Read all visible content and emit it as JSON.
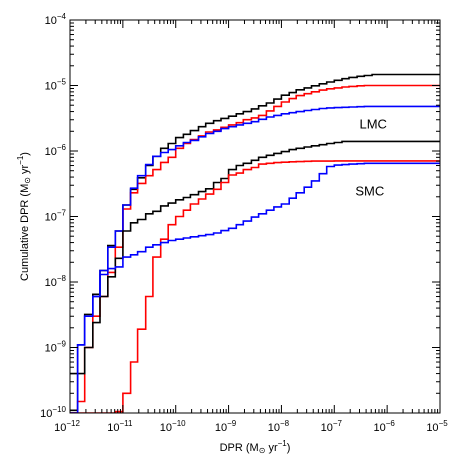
{
  "chart_data": {
    "type": "line",
    "step": true,
    "xscale": "log",
    "yscale": "log",
    "xlim": [
      1e-12,
      1e-05
    ],
    "ylim": [
      1e-10,
      0.0001
    ],
    "xlabel_base": "DPR (M",
    "xlabel_unit": " yr",
    "ylabel_base": "Cumulative DPR (M",
    "ylabel_unit": " yr",
    "unit_exponent": "−1",
    "unit_close": ")",
    "x_tick_labels": [
      "10",
      "10",
      "10",
      "10",
      "10",
      "10",
      "10",
      "10"
    ],
    "x_tick_exponents": [
      "−12",
      "−11",
      "−10",
      "−9",
      "−8",
      "−7",
      "−6",
      "−5"
    ],
    "y_tick_labels": [
      "10",
      "10",
      "10",
      "10",
      "10",
      "10",
      "10"
    ],
    "y_tick_exponents": [
      "−10",
      "−9",
      "−8",
      "−7",
      "−6",
      "−5",
      "−4"
    ],
    "annotations": [
      {
        "text": "LMC",
        "x": 3e-07,
        "y": 2.2e-06
      },
      {
        "text": "SMC",
        "x": 2.5e-07,
        "y": 2.1e-07
      }
    ],
    "series": [
      {
        "group": "LMC",
        "color": "#000000",
        "x": [
          1e-12,
          1.4e-12,
          1.9e-12,
          2.7e-12,
          3.7e-12,
          5.2e-12,
          7.2e-12,
          1e-11,
          1.4e-11,
          1.9e-11,
          2.7e-11,
          3.7e-11,
          5.2e-11,
          7.2e-11,
          1e-10,
          1.4e-10,
          1.9e-10,
          2.7e-10,
          3.7e-10,
          5.2e-10,
          7.2e-10,
          1e-09,
          1.4e-09,
          1.9e-09,
          2.7e-09,
          3.7e-09,
          5.2e-09,
          7.2e-09,
          1e-08,
          1.4e-08,
          1.9e-08,
          2.7e-08,
          3.7e-08,
          5.2e-08,
          7.2e-08,
          1e-07,
          1.4e-07,
          1.9e-07,
          2.7e-07,
          3.7e-07,
          5.2e-07,
          1e-05
        ],
        "y": [
          4e-10,
          1.1e-09,
          3.2e-09,
          6.5e-09,
          1.5e-08,
          3.6e-08,
          6e-08,
          1.5e-07,
          2.6e-07,
          3.9e-07,
          6e-07,
          8.3e-07,
          1.1e-06,
          1.3e-06,
          1.6e-06,
          1.8e-06,
          2.05e-06,
          2.35e-06,
          2.65e-06,
          2.9e-06,
          3.15e-06,
          3.4e-06,
          3.7e-06,
          4e-06,
          4.4e-06,
          4.9e-06,
          5.4e-06,
          6.2e-06,
          7.1e-06,
          7.8e-06,
          8.6e-06,
          9.2e-06,
          9.9e-06,
          1.06e-05,
          1.13e-05,
          1.2e-05,
          1.27e-05,
          1.33e-05,
          1.38e-05,
          1.42e-05,
          1.47e-05,
          1.47e-05
        ]
      },
      {
        "group": "LMC",
        "color": "#ff0000",
        "x": [
          1e-12,
          1.4e-12,
          1.9e-12,
          2.7e-12,
          3.7e-12,
          5.2e-12,
          7.2e-12,
          1e-11,
          1.4e-11,
          1.9e-11,
          2.7e-11,
          3.7e-11,
          5.2e-11,
          7.2e-11,
          1e-10,
          1.4e-10,
          1.9e-10,
          2.7e-10,
          3.7e-10,
          5.2e-10,
          7.2e-10,
          1e-09,
          1.4e-09,
          1.9e-09,
          2.7e-09,
          3.7e-09,
          5.2e-09,
          7.2e-09,
          1e-08,
          1.4e-08,
          1.9e-08,
          2.7e-08,
          3.7e-08,
          5.2e-08,
          7.2e-08,
          1e-07,
          1.4e-07,
          1.9e-07,
          2.7e-07,
          3.7e-07,
          5.2e-07,
          1e-05
        ],
        "y": [
          1e-10,
          1.5e-10,
          1e-09,
          3e-09,
          6e-09,
          1.4e-08,
          3.4e-08,
          1.3e-07,
          2.3e-07,
          3.2e-07,
          4.2e-07,
          5.2e-07,
          6.7e-07,
          8e-07,
          1.1e-06,
          1.3e-06,
          1.5e-06,
          1.7e-06,
          1.95e-06,
          2.1e-06,
          2.3e-06,
          2.5e-06,
          2.7e-06,
          3e-06,
          3.2e-06,
          3.5e-06,
          4.1e-06,
          4.8e-06,
          5.6e-06,
          6.3e-06,
          7e-06,
          7.5e-06,
          8e-06,
          8.5e-06,
          8.9e-06,
          9.2e-06,
          9.5e-06,
          9.7e-06,
          9.9e-06,
          1e-05,
          1e-05,
          1e-05
        ]
      },
      {
        "group": "LMC",
        "color": "#0000ff",
        "x": [
          1e-12,
          1.4e-12,
          1.9e-12,
          2.7e-12,
          3.7e-12,
          5.2e-12,
          7.2e-12,
          1e-11,
          1.4e-11,
          1.9e-11,
          2.7e-11,
          3.7e-11,
          5.2e-11,
          7.2e-11,
          1e-10,
          1.4e-10,
          1.9e-10,
          2.7e-10,
          3.7e-10,
          5.2e-10,
          7.2e-10,
          1e-09,
          1.4e-09,
          1.9e-09,
          2.7e-09,
          3.7e-09,
          5.2e-09,
          7.2e-09,
          1e-08,
          1.4e-08,
          1.9e-08,
          2.7e-08,
          3.7e-08,
          5.2e-08,
          7.2e-08,
          1e-07,
          1.4e-07,
          1.9e-07,
          2.7e-07,
          3.7e-07,
          5.2e-07,
          1e-05
        ],
        "y": [
          1e-10,
          1.1e-09,
          3e-09,
          6e-09,
          1.5e-08,
          3.4e-08,
          6e-08,
          1.5e-07,
          2.7e-07,
          4.2e-07,
          6.2e-07,
          8.3e-07,
          9.5e-07,
          1.05e-06,
          1.2e-06,
          1.35e-06,
          1.45e-06,
          1.65e-06,
          1.85e-06,
          2e-06,
          2.2e-06,
          2.35e-06,
          2.5e-06,
          2.65e-06,
          2.8e-06,
          3.05e-06,
          3.3e-06,
          3.5e-06,
          3.7e-06,
          3.85e-06,
          4e-06,
          4.15e-06,
          4.3e-06,
          4.45e-06,
          4.55e-06,
          4.6e-06,
          4.65e-06,
          4.7e-06,
          4.75e-06,
          4.8e-06,
          4.8e-06,
          4.8e-06
        ]
      },
      {
        "group": "SMC",
        "color": "#000000",
        "x": [
          1e-12,
          1.4e-12,
          1.9e-12,
          2.7e-12,
          3.7e-12,
          5.2e-12,
          7.2e-12,
          1e-11,
          1.4e-11,
          1.9e-11,
          2.7e-11,
          3.7e-11,
          5.2e-11,
          7.2e-11,
          1e-10,
          1.4e-10,
          1.9e-10,
          2.7e-10,
          3.7e-10,
          5.2e-10,
          7.2e-10,
          1e-09,
          1.4e-09,
          1.9e-09,
          2.7e-09,
          3.7e-09,
          5.2e-09,
          7.2e-09,
          1e-08,
          1.4e-08,
          1.9e-08,
          2.7e-08,
          3.7e-08,
          5.2e-08,
          7.2e-08,
          1e-07,
          1.4e-07,
          1.9e-07,
          2.7e-07,
          3.7e-07,
          5.2e-07,
          1e-05
        ],
        "y": [
          1.1e-10,
          4e-10,
          1e-09,
          2.4e-09,
          6e-09,
          1.2e-08,
          2.3e-08,
          6e-08,
          8e-08,
          9e-08,
          1.1e-07,
          1.2e-07,
          1.45e-07,
          1.6e-07,
          1.8e-07,
          1.95e-07,
          2.15e-07,
          2.4e-07,
          2.65e-07,
          3.3e-07,
          3.8e-07,
          5.2e-07,
          6e-07,
          6.5e-07,
          7.2e-07,
          8e-07,
          8.6e-07,
          9.2e-07,
          9.8e-07,
          1.05e-06,
          1.1e-06,
          1.15e-06,
          1.2e-06,
          1.25e-06,
          1.3e-06,
          1.35e-06,
          1.4e-06,
          1.4e-06,
          1.4e-06,
          1.4e-06,
          1.4e-06,
          1.4e-06
        ]
      },
      {
        "group": "SMC",
        "color": "#ff0000",
        "x": [
          1e-12,
          1.4e-12,
          1.9e-12,
          2.7e-12,
          3.7e-12,
          5.2e-12,
          7.2e-12,
          1e-11,
          1.4e-11,
          1.9e-11,
          2.7e-11,
          3.7e-11,
          5.2e-11,
          7.2e-11,
          1e-10,
          1.4e-10,
          1.9e-10,
          2.7e-10,
          3.7e-10,
          5.2e-10,
          7.2e-10,
          1e-09,
          1.4e-09,
          1.9e-09,
          2.7e-09,
          3.7e-09,
          5.2e-09,
          7.2e-09,
          1e-08,
          1.4e-08,
          1.9e-08,
          2.7e-08,
          3.7e-08,
          5.2e-08,
          7.2e-08,
          1e-07,
          1.4e-07,
          1.9e-07,
          2.7e-07,
          3.7e-07,
          5.2e-07,
          1e-05
        ],
        "y": [
          1e-10,
          1e-10,
          1e-10,
          1e-10,
          1e-10,
          1e-10,
          1.05e-10,
          2e-10,
          6e-10,
          1.9e-09,
          6e-09,
          2.4e-08,
          4.5e-08,
          7.5e-08,
          1e-07,
          1.25e-07,
          1.55e-07,
          1.85e-07,
          2.2e-07,
          2.6e-07,
          3.3e-07,
          4.3e-07,
          4.6e-07,
          5.2e-07,
          5.6e-07,
          6.3e-07,
          6.5e-07,
          6.65e-07,
          6.75e-07,
          6.85e-07,
          6.9e-07,
          6.95e-07,
          7e-07,
          7e-07,
          7e-07,
          7.05e-07,
          7.05e-07,
          7.05e-07,
          7.05e-07,
          7.05e-07,
          7.05e-07,
          7.05e-07
        ]
      },
      {
        "group": "SMC",
        "color": "#0000ff",
        "x": [
          1e-12,
          1.4e-12,
          1.9e-12,
          2.7e-12,
          3.7e-12,
          5.2e-12,
          7.2e-12,
          1e-11,
          1.4e-11,
          1.9e-11,
          2.7e-11,
          3.7e-11,
          5.2e-11,
          7.2e-11,
          1e-10,
          1.4e-10,
          1.9e-10,
          2.7e-10,
          3.7e-10,
          5.2e-10,
          7.2e-10,
          1e-09,
          1.4e-09,
          1.9e-09,
          2.7e-09,
          3.7e-09,
          5.2e-09,
          7.2e-09,
          1e-08,
          1.4e-08,
          1.9e-08,
          2.7e-08,
          3.7e-08,
          5.2e-08,
          7.2e-08,
          1e-07,
          1.4e-07,
          1.9e-07,
          2.7e-07,
          3.7e-07,
          5.2e-07,
          1e-05
        ],
        "y": [
          1e-10,
          1.1e-09,
          3e-09,
          6e-09,
          1.3e-08,
          1.6e-08,
          1.7e-08,
          2.4e-08,
          2.6e-08,
          2.9e-08,
          3.4e-08,
          3.7e-08,
          4e-08,
          4.3e-08,
          4.5e-08,
          4.7e-08,
          4.9e-08,
          5.1e-08,
          5.3e-08,
          5.6e-08,
          6.1e-08,
          6.6e-08,
          7.5e-08,
          8.5e-08,
          9.8e-08,
          1.1e-07,
          1.25e-07,
          1.4e-07,
          1.55e-07,
          1.9e-07,
          2.3e-07,
          2.8e-07,
          3.5e-07,
          4.5e-07,
          5.8e-07,
          6.1e-07,
          6.2e-07,
          6.3e-07,
          6.4e-07,
          6.5e-07,
          6.5e-07,
          6.5e-07
        ]
      }
    ]
  }
}
